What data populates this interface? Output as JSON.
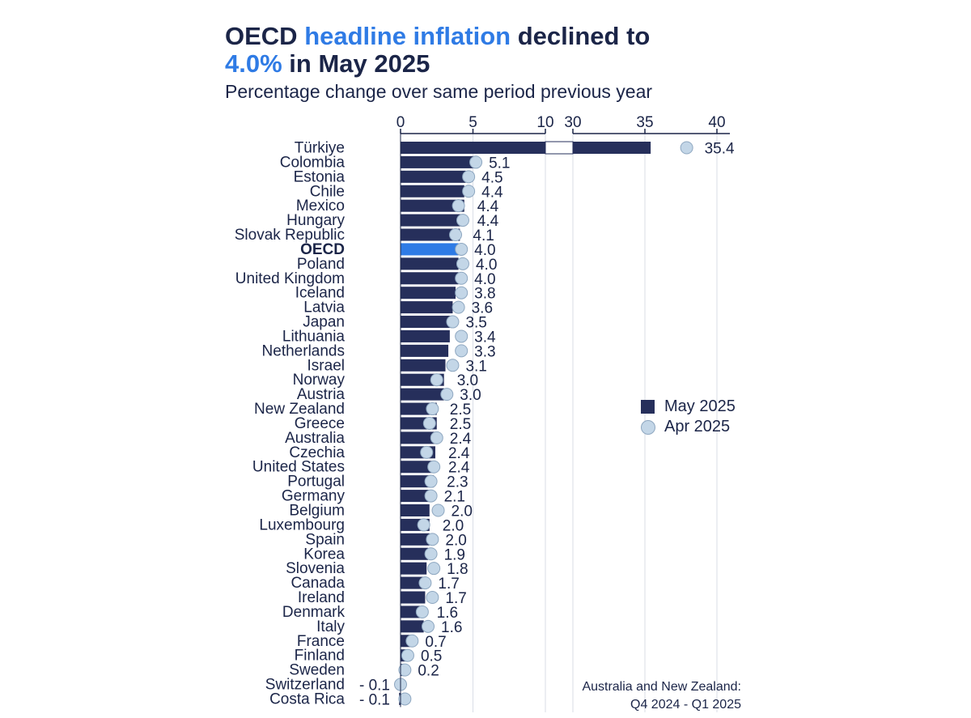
{
  "title": {
    "part1": "OECD ",
    "highlight1": "headline inflation",
    "part2": " declined to",
    "highlight2": "4.0%",
    "part3": " in May 2025"
  },
  "subtitle": "Percentage change over same period previous year",
  "legend": {
    "may": "May 2025",
    "apr": "Apr 2025"
  },
  "footnote": {
    "line1": "Australia and New Zealand:",
    "line2": "Q4 2024 - Q1 2025"
  },
  "colors": {
    "may": "#262f5b",
    "oecd": "#2f7be5",
    "apr_fill": "#c3d6e7",
    "apr_stroke": "#8ea7c0",
    "text": "#1b2548"
  },
  "chart_data": {
    "type": "bar",
    "orientation": "horizontal",
    "axis_break": [
      10,
      30
    ],
    "ticks": [
      0,
      5,
      10,
      30,
      35,
      40
    ],
    "tick_labels": [
      "0",
      "5",
      "10",
      "30",
      "35",
      "40"
    ],
    "series_names": [
      "May 2025",
      "Apr 2025"
    ],
    "highlight_category": "OECD",
    "categories": [
      "Türkiye",
      "Colombia",
      "Estonia",
      "Chile",
      "Mexico",
      "Hungary",
      "Slovak Republic",
      "OECD",
      "Poland",
      "United Kingdom",
      "Iceland",
      "Latvia",
      "Japan",
      "Lithuania",
      "Netherlands",
      "Israel",
      "Norway",
      "Austria",
      "New Zealand",
      "Greece",
      "Australia",
      "Czechia",
      "United States",
      "Portugal",
      "Germany",
      "Belgium",
      "Luxembourg",
      "Spain",
      "Korea",
      "Slovenia",
      "Canada",
      "Ireland",
      "Denmark",
      "Italy",
      "France",
      "Finland",
      "Sweden",
      "Switzerland",
      "Costa Rica"
    ],
    "may_2025": [
      35.4,
      5.1,
      4.5,
      4.4,
      4.4,
      4.4,
      4.1,
      4.0,
      4.0,
      4.0,
      3.8,
      3.6,
      3.5,
      3.4,
      3.3,
      3.1,
      3.0,
      3.0,
      2.5,
      2.5,
      2.4,
      2.4,
      2.4,
      2.3,
      2.1,
      2.0,
      2.0,
      2.0,
      1.9,
      1.8,
      1.7,
      1.7,
      1.6,
      1.6,
      0.7,
      0.5,
      0.2,
      -0.1,
      -0.1
    ],
    "may_2025_labels": [
      "35.4",
      "5.1",
      "4.5",
      "4.4",
      "4.4",
      "4.4",
      "4.1",
      "4.0",
      "4.0",
      "4.0",
      "3.8",
      "3.6",
      "3.5",
      "3.4",
      "3.3",
      "3.1",
      "3.0",
      "3.0",
      "2.5",
      "2.5",
      "2.4",
      "2.4",
      "2.4",
      "2.3",
      "2.1",
      "2.0",
      "2.0",
      "2.0",
      "1.9",
      "1.8",
      "1.7",
      "1.7",
      "1.6",
      "1.6",
      "0.7",
      "0.5",
      "0.2",
      "- 0.1",
      "- 0.1"
    ],
    "apr_2025": [
      37.9,
      5.2,
      4.7,
      4.7,
      4.0,
      4.3,
      3.8,
      4.2,
      4.3,
      4.2,
      4.2,
      4.0,
      3.6,
      4.2,
      4.2,
      3.6,
      2.5,
      3.2,
      2.2,
      2.0,
      2.5,
      1.8,
      2.3,
      2.1,
      2.1,
      2.6,
      1.6,
      2.2,
      2.1,
      2.3,
      1.7,
      2.2,
      1.5,
      1.9,
      0.8,
      0.5,
      0.3,
      0.0,
      0.3
    ]
  }
}
